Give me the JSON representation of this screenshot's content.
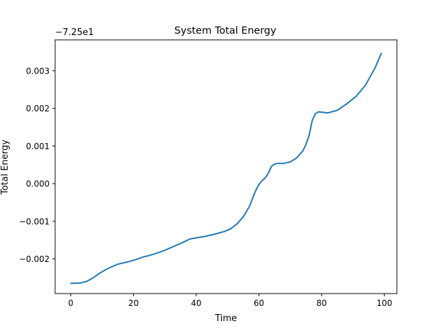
{
  "colors": {
    "line": "#1f77b4",
    "axes": "#000000",
    "background": "#ffffff"
  },
  "chart_data": {
    "type": "line",
    "title": "System Total Energy",
    "xlabel": "Time",
    "ylabel": "Total Energy",
    "offset_label": "−7.25e1",
    "xlim": [
      -5,
      104
    ],
    "ylim": [
      -0.00292,
      0.00382
    ],
    "xticks": [
      0,
      20,
      40,
      60,
      80,
      100
    ],
    "yticks": [
      -0.002,
      -0.001,
      0.0,
      0.001,
      0.002,
      0.003
    ],
    "ytick_labels": [
      "−0.002",
      "−0.001",
      "0.000",
      "0.001",
      "0.002",
      "0.003"
    ],
    "grid": false,
    "legend": "none",
    "series": [
      {
        "x": [
          0,
          3,
          5,
          7,
          9,
          11,
          13,
          15,
          17,
          19,
          21,
          23,
          25,
          27,
          30,
          33,
          35,
          37,
          38,
          40,
          43,
          46,
          49,
          51,
          53,
          55,
          57,
          58,
          59,
          60,
          61,
          62,
          63,
          64,
          65,
          66,
          68,
          70,
          72,
          74,
          75,
          76,
          77,
          78,
          79,
          80,
          82,
          85,
          88,
          91,
          94,
          97,
          99
        ],
        "y": [
          -0.00265,
          -0.00264,
          -0.0026,
          -0.00251,
          -0.00239,
          -0.00229,
          -0.00221,
          -0.00214,
          -0.0021,
          -0.00206,
          -0.00201,
          -0.00195,
          -0.00191,
          -0.00186,
          -0.00177,
          -0.00166,
          -0.00159,
          -0.00151,
          -0.00147,
          -0.00144,
          -0.0014,
          -0.00134,
          -0.00127,
          -0.0012,
          -0.00107,
          -0.00088,
          -0.0006,
          -0.00038,
          -0.00018,
          -2e-05,
          8e-05,
          0.00015,
          0.00028,
          0.00046,
          0.00052,
          0.00054,
          0.00054,
          0.00058,
          0.00068,
          0.00087,
          0.00104,
          0.00128,
          0.00168,
          0.00186,
          0.00191,
          0.0019,
          0.00188,
          0.00195,
          0.00212,
          0.00232,
          0.00262,
          0.00307,
          0.00346
        ]
      }
    ]
  }
}
